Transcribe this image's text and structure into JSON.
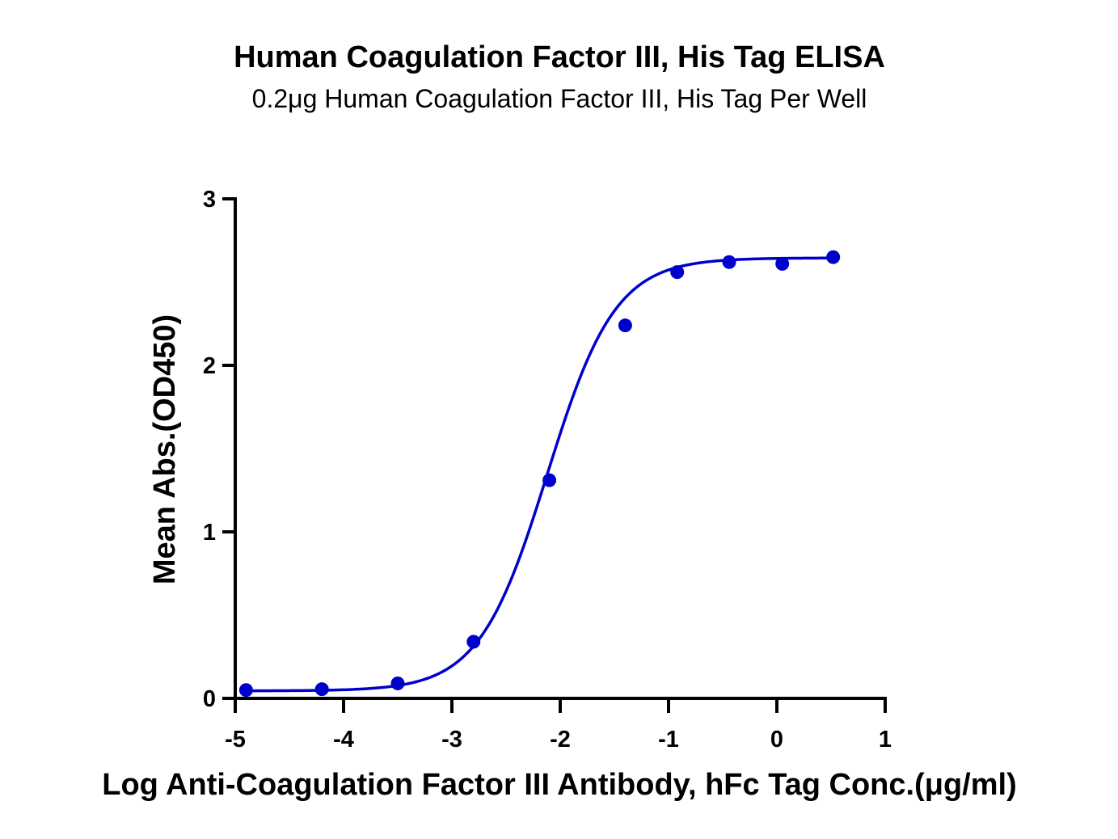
{
  "chart_data": {
    "type": "scatter",
    "title": "Human Coagulation Factor III, His Tag ELISA",
    "subtitle": "0.2μg Human Coagulation Factor III, His Tag Per Well",
    "xlabel": "Log Anti-Coagulation Factor III Antibody, hFc Tag Conc.(μg/ml)",
    "ylabel": "Mean Abs.(OD450)",
    "xlim": [
      -5,
      1
    ],
    "ylim": [
      0,
      3
    ],
    "xticks": [
      "-5",
      "-4",
      "-3",
      "-2",
      "-1",
      "0",
      "1"
    ],
    "yticks": [
      "0",
      "1",
      "2",
      "3"
    ],
    "grid": false,
    "legend": "none",
    "color": "#0000cc",
    "series": [
      {
        "points": [
          {
            "x": -4.9,
            "y": 0.05
          },
          {
            "x": -4.2,
            "y": 0.055
          },
          {
            "x": -3.5,
            "y": 0.09
          },
          {
            "x": -2.8,
            "y": 0.34
          },
          {
            "x": -2.1,
            "y": 1.31
          },
          {
            "x": -1.4,
            "y": 2.24
          },
          {
            "x": -0.92,
            "y": 2.56
          },
          {
            "x": -0.44,
            "y": 2.62
          },
          {
            "x": 0.05,
            "y": 2.61
          },
          {
            "x": 0.52,
            "y": 2.65
          }
        ],
        "fit": {
          "model": "4PL",
          "bottom": 0.045,
          "top": 2.645,
          "logEC50": -2.12,
          "hillslope": 1.38,
          "x_range": [
            -4.9,
            0.52
          ]
        }
      }
    ]
  }
}
